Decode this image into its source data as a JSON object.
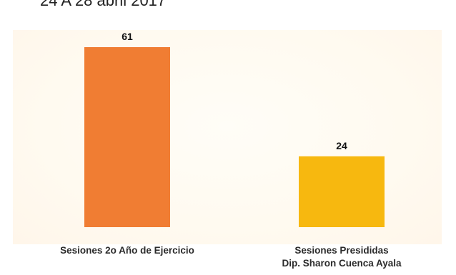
{
  "page": {
    "title_fragment": "24 A 28 abril 2017"
  },
  "chart_data": {
    "type": "bar",
    "categories": [
      [
        "Sesiones 2o Año de Ejercicio"
      ],
      [
        "Sesiones Presididas",
        "Dip. Sharon Cuenca Ayala"
      ]
    ],
    "values": [
      61,
      24
    ],
    "data_labels": [
      "61",
      "24"
    ],
    "colors": [
      "#F07D33",
      "#F7B80F"
    ],
    "ylim": [
      0,
      70
    ],
    "grid": false,
    "legend": "none",
    "title": "",
    "xlabel": "",
    "ylabel": ""
  }
}
